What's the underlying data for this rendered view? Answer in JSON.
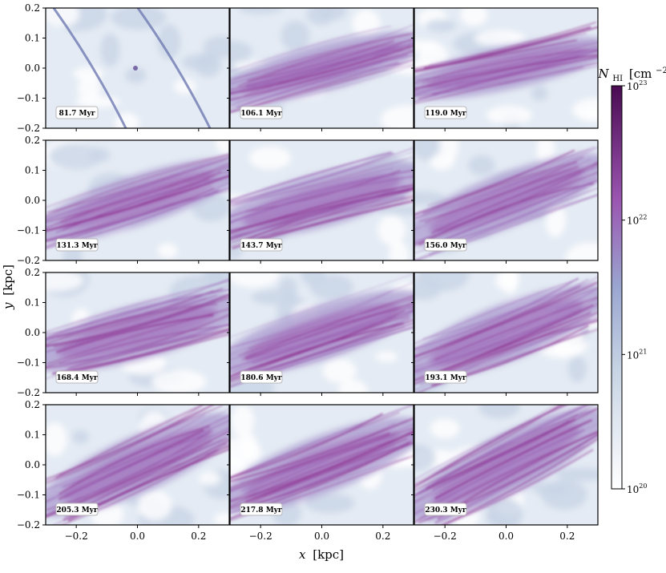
{
  "figure": {
    "xlabel_var": "x",
    "xlabel_unit": "[kpc]",
    "ylabel_var": "y",
    "ylabel_unit": "[kpc]",
    "colorbar_label_var": "N",
    "colorbar_label_sub": "HI",
    "colorbar_label_unit": "[cm",
    "colorbar_label_exp": "−2",
    "colorbar_label_close": "]",
    "colorbar_colors": [
      "#ffffff",
      "#c6d3e4",
      "#9aa6d0",
      "#9a55b0",
      "#4a0a52"
    ]
  },
  "chart_data": {
    "type": "heatmap",
    "description_type": "grid of column-density maps",
    "rows": 4,
    "cols": 3,
    "xlim": [
      -0.3,
      0.3
    ],
    "ylim": [
      -0.2,
      0.2
    ],
    "xticks": [
      -0.2,
      0.0,
      0.2
    ],
    "xtick_labels": [
      "−0.2",
      "0.0",
      "0.2"
    ],
    "yticks": [
      0.2,
      0.1,
      0.0,
      -0.1,
      -0.2
    ],
    "ytick_labels": [
      "0.2",
      "0.1",
      "0.0",
      "−0.1",
      "−0.2"
    ],
    "panels": [
      {
        "time": "81.7 Myr",
        "intensity": 0.2,
        "angle": 60
      },
      {
        "time": "106.1 Myr",
        "intensity": 0.7,
        "angle": -25
      },
      {
        "time": "119.0 Myr",
        "intensity": 0.65,
        "angle": -20
      },
      {
        "time": "131.3 Myr",
        "intensity": 0.75,
        "angle": -30
      },
      {
        "time": "143.7 Myr",
        "intensity": 0.8,
        "angle": -25
      },
      {
        "time": "156.0 Myr",
        "intensity": 0.8,
        "angle": -35
      },
      {
        "time": "168.4 Myr",
        "intensity": 0.82,
        "angle": -25
      },
      {
        "time": "180.6 Myr",
        "intensity": 0.8,
        "angle": -30
      },
      {
        "time": "193.1 Myr",
        "intensity": 0.85,
        "angle": -35
      },
      {
        "time": "205.3 Myr",
        "intensity": 0.85,
        "angle": -40
      },
      {
        "time": "217.8 Myr",
        "intensity": 0.85,
        "angle": -35
      },
      {
        "time": "230.3 Myr",
        "intensity": 0.88,
        "angle": -45
      }
    ],
    "colorbar": {
      "scale": "log",
      "range": [
        1e+20,
        1e+23
      ],
      "ticks": [
        {
          "base": "10",
          "exp": "23"
        },
        {
          "base": "10",
          "exp": "22"
        },
        {
          "base": "10",
          "exp": "21"
        },
        {
          "base": "10",
          "exp": "20"
        }
      ]
    }
  }
}
